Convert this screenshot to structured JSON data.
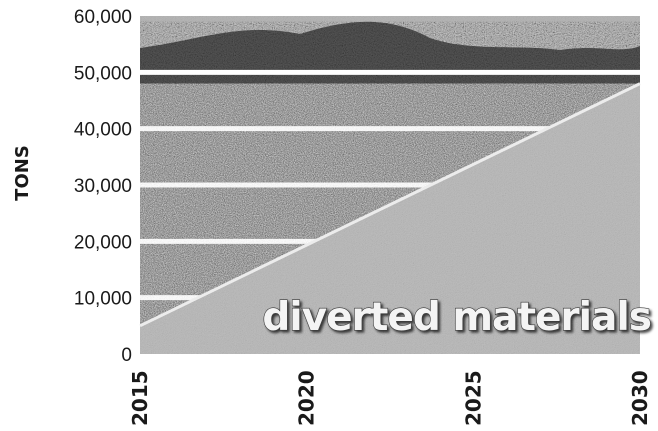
{
  "chart_data": {
    "type": "area",
    "ylabel": "TONS",
    "xlabel": "",
    "ylim": [
      0,
      60000
    ],
    "xlim": [
      2015,
      2030
    ],
    "yticks": [
      0,
      10000,
      20000,
      30000,
      40000,
      50000,
      60000
    ],
    "ytick_labels": [
      "0",
      "10,000",
      "20,000",
      "30,000",
      "40,000",
      "50,000",
      "60,000"
    ],
    "xticks": [
      2015,
      2020,
      2025,
      2030
    ],
    "xtick_labels": [
      "2015",
      "2020",
      "2025",
      "2030"
    ],
    "grid": true,
    "series": [
      {
        "name": "diverted materials",
        "x": [
          2015,
          2030
        ],
        "values": [
          5000,
          48000
        ]
      }
    ],
    "annotations": [
      {
        "text": "diverted materials",
        "x": 2024.5,
        "y": 6000
      }
    ],
    "colors": {
      "background_texture": "#5a5a5a",
      "area_fill": "#bdbdbd",
      "gridline": "#ffffff",
      "text": "#1a1a1a"
    }
  }
}
